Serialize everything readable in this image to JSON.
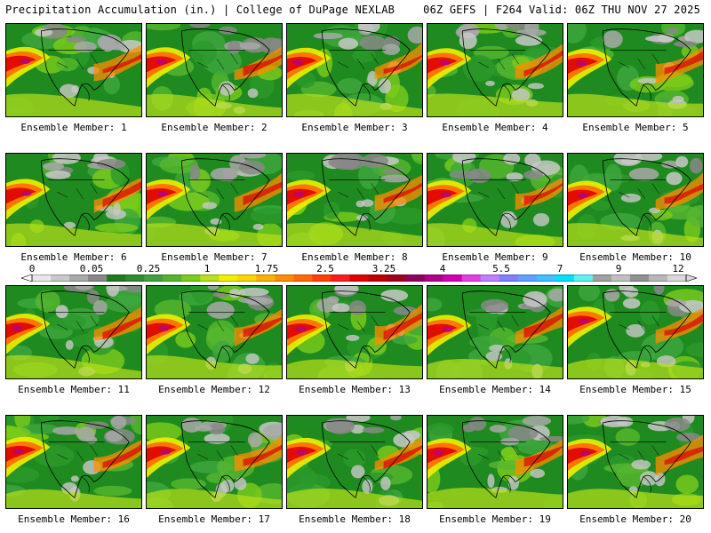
{
  "header": {
    "title": "Precipitation Accumulation (in.) | College of DuPage NEXLAB",
    "run_info": "06Z GEFS | F264 Valid: 06Z THU NOV 27 2025"
  },
  "panels": [
    {
      "label": "Ensemble Member: 1"
    },
    {
      "label": "Ensemble Member: 2"
    },
    {
      "label": "Ensemble Member: 3"
    },
    {
      "label": "Ensemble Member: 4"
    },
    {
      "label": "Ensemble Member: 5"
    },
    {
      "label": "Ensemble Member: 6"
    },
    {
      "label": "Ensemble Member: 7"
    },
    {
      "label": "Ensemble Member: 8"
    },
    {
      "label": "Ensemble Member: 9"
    },
    {
      "label": "Ensemble Member: 10"
    },
    {
      "label": "Ensemble Member: 11"
    },
    {
      "label": "Ensemble Member: 12"
    },
    {
      "label": "Ensemble Member: 13"
    },
    {
      "label": "Ensemble Member: 14"
    },
    {
      "label": "Ensemble Member: 15"
    },
    {
      "label": "Ensemble Member: 16"
    },
    {
      "label": "Ensemble Member: 17"
    },
    {
      "label": "Ensemble Member: 18"
    },
    {
      "label": "Ensemble Member: 19"
    },
    {
      "label": "Ensemble Member: 20"
    }
  ],
  "colorbar": {
    "labels": [
      "0",
      "0.05",
      "0.25",
      "1",
      "1.75",
      "2.5",
      "3.25",
      "4",
      "5.5",
      "7",
      "9",
      "12"
    ],
    "colors": [
      "#e8e8e8",
      "#c8c8c8",
      "#a8a8a8",
      "#888888",
      "#1e7a1e",
      "#2e8b2e",
      "#3fa03f",
      "#55b52a",
      "#7ccc1a",
      "#b8e01a",
      "#f0f000",
      "#ffd400",
      "#ffb000",
      "#ff8c00",
      "#ff6a00",
      "#ff4000",
      "#ff1a1a",
      "#e00000",
      "#c00000",
      "#a00020",
      "#900060",
      "#b0008a",
      "#d000b0",
      "#e040e0",
      "#c080ff",
      "#8080ff",
      "#60a0ff",
      "#40c0ff",
      "#00e0ff",
      "#60f0f0",
      "#a0a0a0",
      "#c0c0c0",
      "#909090",
      "#b8b8b8",
      "#d8d8d8"
    ]
  }
}
